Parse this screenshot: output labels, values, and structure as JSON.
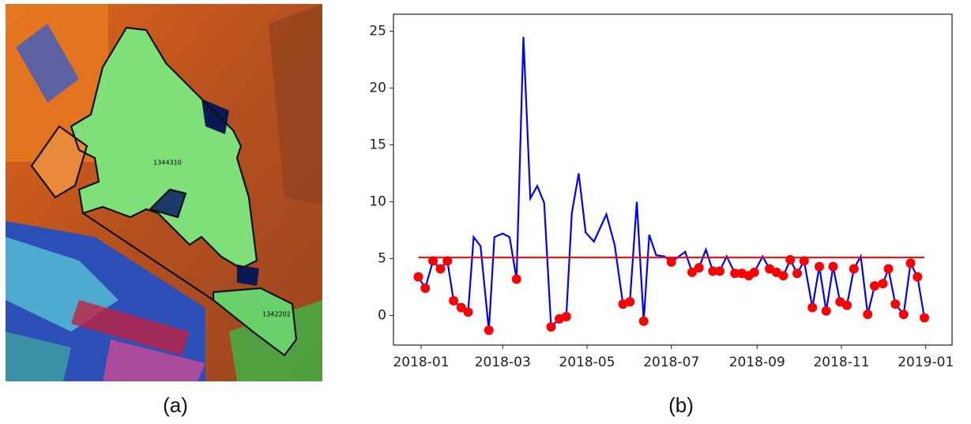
{
  "image": {
    "parcel_labels": [
      "1344310",
      "1342202"
    ],
    "caption": "(a)"
  },
  "chart_data": {
    "type": "line",
    "caption": "(b)",
    "x": [
      -2,
      3,
      8.6,
      14,
      19,
      23.5,
      29,
      34,
      38,
      43,
      49,
      53,
      59,
      64,
      69,
      74,
      79,
      84,
      89,
      94,
      100,
      105,
      109,
      114,
      119,
      125,
      134,
      140,
      146,
      151,
      156,
      161,
      165,
      170,
      176,
      181,
      191,
      196,
      201,
      206,
      211,
      216,
      221,
      227,
      232,
      237,
      241,
      247,
      252,
      257,
      262,
      267,
      272,
      277,
      283,
      288,
      293,
      298,
      303,
      308,
      313,
      318,
      323,
      328,
      334,
      338,
      343,
      349,
      354,
      359,
      364
    ],
    "series": [
      {
        "color": "#0000ff",
        "marker_color": "#ff0000",
        "values": [
          3.4,
          2.4,
          4.8,
          4.1,
          4.8,
          1.3,
          0.7,
          0.3,
          6.9,
          6.1,
          -1.3,
          6.9,
          7.2,
          6.9,
          3.2,
          24.5,
          10.3,
          11.4,
          9.9,
          -1.0,
          -0.3,
          -0.1,
          9.0,
          12.5,
          7.3,
          6.5,
          8.9,
          6.2,
          1.0,
          1.2,
          10.0,
          -0.5,
          7.1,
          5.3,
          5.2,
          4.7,
          5.6,
          3.8,
          4.2,
          5.8,
          3.9,
          3.9,
          5.2,
          3.7,
          3.7,
          3.5,
          3.8,
          5.2,
          4.1,
          3.8,
          3.5,
          4.9,
          3.7,
          4.8,
          0.7,
          4.3,
          0.4,
          4.3,
          1.2,
          0.9,
          4.1,
          5.2,
          0.1,
          2.6,
          2.8,
          4.1,
          1.0,
          0.1,
          4.6,
          3.4,
          -0.2
        ]
      }
    ],
    "threshold": 5.1,
    "threshold_color": "#ff0000",
    "xlim": [
      -20,
      384
    ],
    "ylim": [
      -2.6,
      26.5
    ],
    "xticks": [
      {
        "value": 0,
        "label": "2018-01"
      },
      {
        "value": 59,
        "label": "2018-03"
      },
      {
        "value": 120,
        "label": "2018-05"
      },
      {
        "value": 181,
        "label": "2018-07"
      },
      {
        "value": 243,
        "label": "2018-09"
      },
      {
        "value": 304,
        "label": "2018-11"
      },
      {
        "value": 365,
        "label": "2019-01"
      }
    ],
    "yticks": [
      0,
      5,
      10,
      15,
      20,
      25
    ]
  }
}
